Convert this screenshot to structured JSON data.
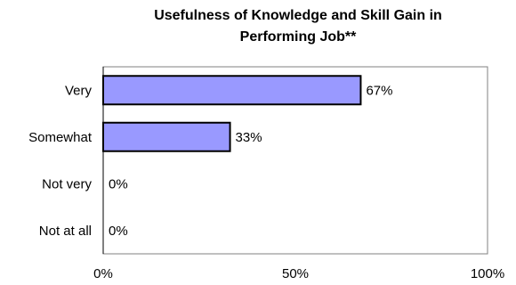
{
  "chart_data": {
    "type": "bar",
    "orientation": "horizontal",
    "title_lines": [
      "Usefulness of Knowledge and  Skill Gain in",
      "Performing Job**"
    ],
    "categories": [
      "Very",
      "Somewhat",
      "Not very",
      "Not at all"
    ],
    "values": [
      67,
      33,
      0,
      0
    ],
    "value_labels": [
      "67%",
      "33%",
      "0%",
      "0%"
    ],
    "x_ticks": [
      0,
      50,
      100
    ],
    "x_tick_labels": [
      "0%",
      "50%",
      "100%"
    ],
    "xlim": [
      0,
      100
    ],
    "xlabel": "",
    "ylabel": "",
    "grid": false,
    "legend": "none",
    "colors": {
      "bar_fill": "#9999ff",
      "bar_stroke": "#000000",
      "plot_border": "#808080"
    }
  }
}
